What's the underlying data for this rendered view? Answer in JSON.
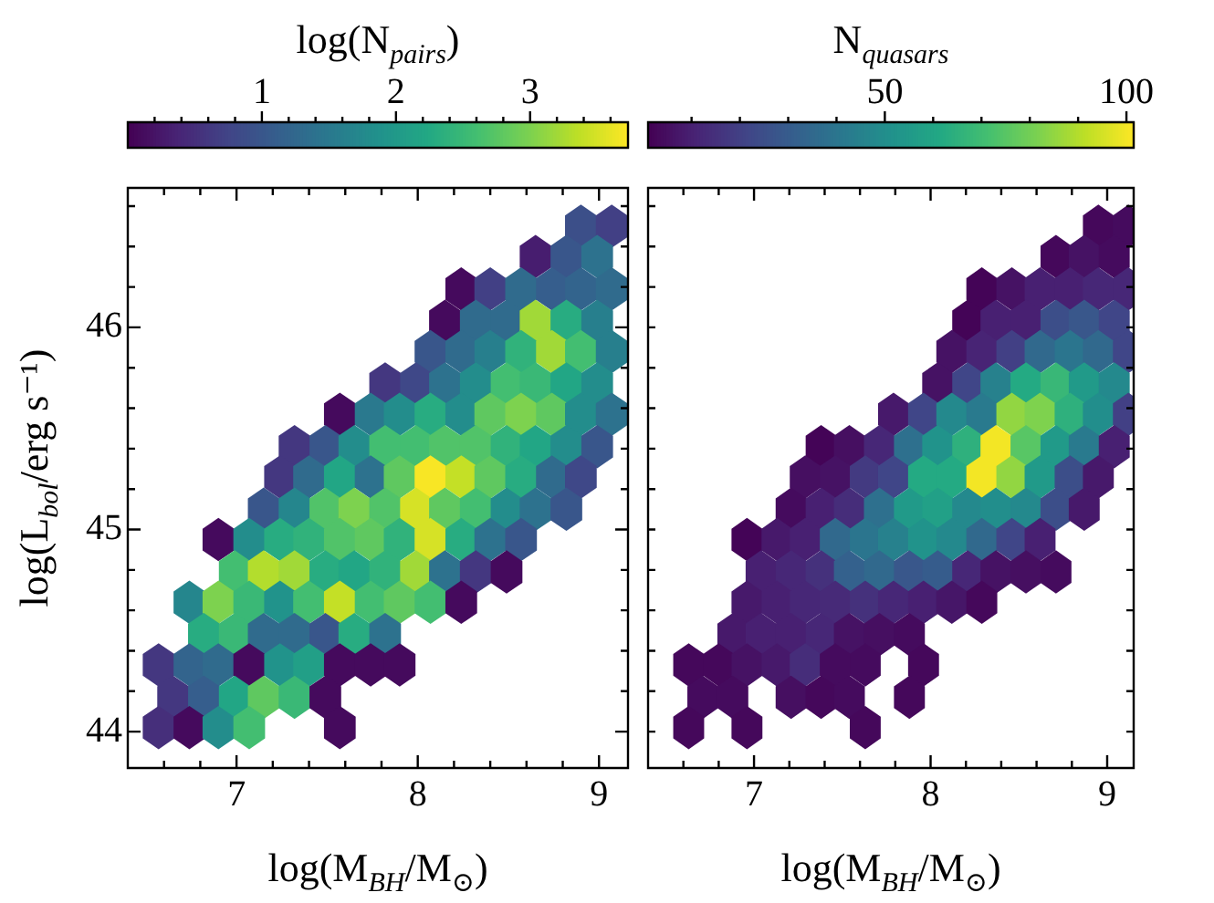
{
  "chart_data": [
    {
      "type": "scatter",
      "clabel": "log(N$_{pairs}$)",
      "xlabel": "log(M$_{BH}$/M$_{⊙}$)",
      "ylabel": "log(L$_{bol}$/erg s⁻¹)",
      "xlim": [
        6.4,
        9.16
      ],
      "ylim": [
        43.82,
        46.69
      ],
      "xticks": [
        {
          "value": 6.6,
          "label": null
        },
        {
          "value": 6.8,
          "label": null
        },
        7,
        {
          "value": 7.2,
          "label": null
        },
        {
          "value": 7.4,
          "label": null
        },
        {
          "value": 7.6,
          "label": null
        },
        {
          "value": 7.8,
          "label": null
        },
        8,
        {
          "value": 8.2,
          "label": null
        },
        {
          "value": 8.4,
          "label": null
        },
        {
          "value": 8.6,
          "label": null
        },
        {
          "value": 8.8,
          "label": null
        },
        9
      ],
      "yticks": [
        44,
        {
          "value": 44.2,
          "label": null
        },
        {
          "value": 44.4,
          "label": null
        },
        {
          "value": 44.6,
          "label": null
        },
        {
          "value": 44.8,
          "label": null
        },
        45,
        {
          "value": 45.2,
          "label": null
        },
        {
          "value": 45.4,
          "label": null
        },
        {
          "value": 45.6,
          "label": null
        },
        {
          "value": 45.8,
          "label": null
        },
        46,
        {
          "value": 46.2,
          "label": null
        },
        {
          "value": 46.4,
          "label": null
        },
        {
          "value": 46.6,
          "label": null
        }
      ],
      "clim": [
        0,
        3.73
      ],
      "cticks": [
        {
          "value": 0.2,
          "label": null
        },
        {
          "value": 0.4,
          "label": null
        },
        {
          "value": 0.6,
          "label": null
        },
        {
          "value": 0.8,
          "label": null
        },
        1,
        {
          "value": 1.2,
          "label": null
        },
        {
          "value": 1.4,
          "label": null
        },
        {
          "value": 1.6,
          "label": null
        },
        {
          "value": 1.8,
          "label": null
        },
        2,
        {
          "value": 2.2,
          "label": null
        },
        {
          "value": 2.4,
          "label": null
        },
        {
          "value": 2.6,
          "label": null
        },
        {
          "value": 2.8,
          "label": null
        },
        3,
        {
          "value": 3.2,
          "label": null
        },
        {
          "value": 3.4,
          "label": null
        },
        {
          "value": 3.6,
          "label": null
        }
      ],
      "x": [
        8.9,
        9.07,
        8.65,
        8.82,
        8.99,
        8.24,
        8.4,
        8.57,
        8.74,
        8.9,
        9.07,
        8.15,
        8.32,
        8.49,
        8.65,
        8.82,
        8.99,
        8.07,
        8.24,
        8.4,
        8.57,
        8.74,
        8.9,
        9.07,
        7.82,
        7.99,
        8.15,
        8.32,
        8.49,
        8.65,
        8.82,
        8.99,
        7.57,
        7.74,
        7.9,
        8.07,
        8.24,
        8.4,
        8.57,
        8.74,
        8.9,
        9.07,
        7.32,
        7.49,
        7.65,
        7.82,
        7.99,
        8.15,
        8.32,
        8.49,
        8.65,
        8.82,
        8.99,
        7.24,
        7.4,
        7.57,
        7.74,
        7.9,
        8.07,
        8.24,
        8.4,
        8.57,
        8.74,
        8.9,
        7.15,
        7.32,
        7.49,
        7.65,
        7.82,
        7.99,
        8.15,
        8.32,
        8.49,
        8.65,
        8.82,
        6.9,
        7.07,
        7.24,
        7.4,
        7.57,
        7.74,
        7.9,
        8.07,
        8.24,
        8.4,
        8.57,
        6.99,
        7.15,
        7.32,
        7.49,
        7.65,
        7.82,
        7.99,
        8.15,
        8.32,
        8.49,
        6.74,
        6.9,
        7.07,
        7.24,
        7.4,
        7.57,
        7.74,
        7.9,
        8.07,
        8.24,
        6.82,
        6.99,
        7.15,
        7.32,
        7.49,
        7.65,
        7.82,
        6.57,
        6.74,
        6.9,
        7.07,
        7.24,
        7.4,
        7.57,
        7.74,
        7.9,
        6.65,
        6.82,
        6.99,
        7.15,
        7.32,
        7.49,
        6.57,
        6.74,
        6.9,
        7.07,
        7.57
      ],
      "values": [
        46.5,
        46.5,
        46.35,
        46.35,
        46.35,
        46.19,
        46.19,
        46.19,
        46.19,
        46.19,
        46.19,
        46.03,
        46.03,
        46.03,
        46.03,
        46.03,
        46.03,
        45.88,
        45.88,
        45.88,
        45.88,
        45.88,
        45.88,
        45.88,
        45.72,
        45.72,
        45.72,
        45.72,
        45.72,
        45.72,
        45.72,
        45.72,
        45.57,
        45.57,
        45.57,
        45.57,
        45.57,
        45.57,
        45.57,
        45.57,
        45.57,
        45.57,
        45.41,
        45.41,
        45.41,
        45.41,
        45.41,
        45.41,
        45.41,
        45.41,
        45.41,
        45.41,
        45.41,
        45.26,
        45.26,
        45.26,
        45.26,
        45.26,
        45.26,
        45.26,
        45.26,
        45.26,
        45.26,
        45.26,
        45.1,
        45.1,
        45.1,
        45.1,
        45.1,
        45.1,
        45.1,
        45.1,
        45.1,
        45.1,
        45.1,
        44.95,
        44.95,
        44.95,
        44.95,
        44.95,
        44.95,
        44.95,
        44.95,
        44.95,
        44.95,
        44.95,
        44.79,
        44.79,
        44.79,
        44.79,
        44.79,
        44.79,
        44.79,
        44.79,
        44.79,
        44.79,
        44.64,
        44.64,
        44.64,
        44.64,
        44.64,
        44.64,
        44.64,
        44.64,
        44.64,
        44.64,
        44.48,
        44.48,
        44.48,
        44.48,
        44.48,
        44.48,
        44.48,
        44.33,
        44.33,
        44.33,
        44.33,
        44.33,
        44.33,
        44.33,
        44.33,
        44.33,
        44.17,
        44.17,
        44.17,
        44.17,
        44.17,
        44.17,
        44.02,
        44.02,
        44.02,
        44.02,
        44.02
      ],
      "cvalues": [
        0.9,
        0.7,
        0.3,
        1.0,
        1.4,
        0.1,
        0.7,
        1.3,
        1.1,
        1.2,
        1.3,
        0.1,
        1.3,
        1.3,
        3.2,
        2.3,
        1.6,
        1.0,
        1.3,
        1.6,
        2.4,
        3.2,
        2.6,
        1.6,
        0.6,
        0.8,
        1.4,
        1.8,
        2.6,
        2.5,
        2.2,
        1.8,
        0.1,
        1.5,
        1.8,
        2.3,
        1.8,
        2.8,
        3.0,
        2.8,
        1.8,
        1.4,
        0.6,
        1.0,
        1.8,
        2.6,
        2.6,
        2.7,
        2.7,
        2.4,
        2.2,
        1.8,
        1.0,
        0.6,
        1.3,
        2.2,
        1.4,
        2.8,
        3.7,
        3.4,
        2.8,
        2.3,
        1.3,
        0.8,
        1.0,
        1.7,
        2.7,
        3.0,
        2.7,
        3.5,
        2.8,
        2.6,
        1.8,
        1.4,
        1.0,
        0.1,
        1.8,
        2.3,
        2.4,
        2.7,
        2.8,
        2.4,
        3.5,
        2.3,
        1.4,
        1.0,
        2.6,
        3.3,
        3.2,
        2.3,
        2.2,
        2.4,
        3.2,
        1.4,
        0.6,
        0.1,
        1.7,
        3.0,
        2.5,
        1.9,
        2.6,
        3.4,
        2.6,
        2.8,
        2.6,
        0.1,
        2.3,
        2.5,
        1.3,
        1.3,
        1.0,
        2.3,
        1.4,
        0.6,
        1.2,
        1.3,
        0.1,
        1.9,
        2.1,
        0.1,
        0.1,
        0.1,
        0.6,
        1.1,
        2.2,
        2.8,
        2.5,
        0.1,
        0.5,
        0.1,
        1.8,
        2.6,
        0.1
      ]
    },
    {
      "type": "scatter",
      "clabel": "N$_{quasars}$",
      "xlabel": "log(M$_{BH}$/M$_{⊙}$)",
      "tick_labels": "x",
      "xlim": [
        6.4,
        9.15
      ],
      "ylim": [
        43.82,
        46.69
      ],
      "xticks": [
        {
          "value": 6.6,
          "label": null
        },
        {
          "value": 6.8,
          "label": null
        },
        7,
        {
          "value": 7.2,
          "label": null
        },
        {
          "value": 7.4,
          "label": null
        },
        {
          "value": 7.6,
          "label": null
        },
        {
          "value": 7.8,
          "label": null
        },
        8,
        {
          "value": 8.2,
          "label": null
        },
        {
          "value": 8.4,
          "label": null
        },
        {
          "value": 8.6,
          "label": null
        },
        {
          "value": 8.8,
          "label": null
        },
        9
      ],
      "yticks": [
        {
          "value": 44,
          "label": null
        },
        {
          "value": 44.2,
          "label": null
        },
        {
          "value": 44.4,
          "label": null
        },
        {
          "value": 44.6,
          "label": null
        },
        {
          "value": 44.8,
          "label": null
        },
        {
          "value": 45,
          "label": null
        },
        {
          "value": 45.2,
          "label": null
        },
        {
          "value": 45.4,
          "label": null
        },
        {
          "value": 45.6,
          "label": null
        },
        {
          "value": 45.8,
          "label": null
        },
        {
          "value": 46,
          "label": null
        },
        {
          "value": 46.2,
          "label": null
        },
        {
          "value": 46.4,
          "label": null
        },
        {
          "value": 46.6,
          "label": null
        }
      ],
      "clim": [
        1,
        101.5
      ],
      "cticks": [
        {
          "value": 10,
          "label": null
        },
        {
          "value": 20,
          "label": null
        },
        {
          "value": 30,
          "label": null
        },
        {
          "value": 40,
          "label": null
        },
        50,
        {
          "value": 60,
          "label": null
        },
        {
          "value": 70,
          "label": null
        },
        {
          "value": 80,
          "label": null
        },
        {
          "value": 90,
          "label": null
        },
        100
      ],
      "x": [
        8.95,
        9.12,
        8.71,
        8.87,
        9.04,
        8.29,
        8.46,
        8.62,
        8.79,
        8.95,
        9.12,
        8.21,
        8.37,
        8.54,
        8.71,
        8.87,
        9.04,
        8.12,
        8.29,
        8.46,
        8.62,
        8.79,
        8.95,
        9.12,
        8.04,
        8.21,
        8.37,
        8.54,
        8.71,
        8.87,
        9.04,
        7.79,
        7.96,
        8.12,
        8.29,
        8.46,
        8.62,
        8.79,
        8.95,
        9.12,
        7.38,
        7.54,
        7.71,
        7.88,
        8.04,
        8.21,
        8.37,
        8.54,
        8.71,
        8.87,
        9.04,
        7.29,
        7.46,
        7.63,
        7.79,
        7.96,
        8.12,
        8.29,
        8.46,
        8.62,
        8.79,
        8.95,
        7.21,
        7.38,
        7.54,
        7.71,
        7.88,
        8.04,
        8.21,
        8.37,
        8.54,
        8.71,
        8.87,
        6.96,
        7.13,
        7.29,
        7.46,
        7.63,
        7.79,
        7.96,
        8.12,
        8.29,
        8.46,
        8.62,
        7.04,
        7.21,
        7.38,
        7.54,
        7.71,
        7.88,
        8.04,
        8.21,
        8.37,
        8.54,
        8.71,
        6.96,
        7.13,
        7.29,
        7.46,
        7.63,
        7.79,
        7.96,
        8.12,
        8.29,
        6.88,
        7.04,
        7.21,
        7.38,
        7.54,
        7.71,
        7.88,
        6.63,
        6.8,
        6.96,
        7.13,
        7.29,
        7.46,
        7.63,
        7.96,
        6.71,
        6.88,
        7.21,
        7.38,
        7.54,
        7.88,
        6.63,
        6.96,
        7.63
      ],
      "values": [
        46.5,
        46.5,
        46.35,
        46.35,
        46.35,
        46.19,
        46.19,
        46.19,
        46.19,
        46.19,
        46.19,
        46.03,
        46.03,
        46.03,
        46.03,
        46.03,
        46.03,
        45.88,
        45.88,
        45.88,
        45.88,
        45.88,
        45.88,
        45.88,
        45.72,
        45.72,
        45.72,
        45.72,
        45.72,
        45.72,
        45.72,
        45.57,
        45.57,
        45.57,
        45.57,
        45.57,
        45.57,
        45.57,
        45.57,
        45.57,
        45.41,
        45.41,
        45.41,
        45.41,
        45.41,
        45.41,
        45.41,
        45.41,
        45.41,
        45.41,
        45.41,
        45.26,
        45.26,
        45.26,
        45.26,
        45.26,
        45.26,
        45.26,
        45.26,
        45.26,
        45.26,
        45.26,
        45.1,
        45.1,
        45.1,
        45.1,
        45.1,
        45.1,
        45.1,
        45.1,
        45.1,
        45.1,
        45.1,
        44.95,
        44.95,
        44.95,
        44.95,
        44.95,
        44.95,
        44.95,
        44.95,
        44.95,
        44.95,
        44.95,
        44.79,
        44.79,
        44.79,
        44.79,
        44.79,
        44.79,
        44.79,
        44.79,
        44.79,
        44.79,
        44.79,
        44.64,
        44.64,
        44.64,
        44.64,
        44.64,
        44.64,
        44.64,
        44.64,
        44.64,
        44.48,
        44.48,
        44.48,
        44.48,
        44.48,
        44.48,
        44.48,
        44.33,
        44.33,
        44.33,
        44.33,
        44.33,
        44.33,
        44.33,
        44.33,
        44.17,
        44.17,
        44.17,
        44.17,
        44.17,
        44.17,
        44.02,
        44.02,
        44.02
      ],
      "cvalues": [
        3,
        4,
        3,
        6,
        4,
        2,
        6,
        10,
        10,
        12,
        12,
        2,
        10,
        10,
        25,
        28,
        22,
        6,
        11,
        20,
        35,
        40,
        35,
        22,
        6,
        22,
        45,
        62,
        68,
        55,
        48,
        8,
        22,
        48,
        42,
        85,
        82,
        65,
        50,
        20,
        2,
        5,
        12,
        38,
        52,
        65,
        100,
        75,
        55,
        42,
        10,
        5,
        6,
        18,
        22,
        62,
        62,
        100,
        85,
        55,
        25,
        8,
        4,
        10,
        14,
        38,
        55,
        58,
        48,
        50,
        48,
        25,
        8,
        2,
        8,
        10,
        35,
        40,
        45,
        52,
        48,
        35,
        22,
        10,
        10,
        12,
        15,
        32,
        35,
        28,
        30,
        12,
        6,
        5,
        4,
        8,
        10,
        12,
        13,
        15,
        12,
        10,
        7,
        3,
        8,
        10,
        10,
        12,
        6,
        5,
        4,
        3,
        3,
        6,
        8,
        14,
        4,
        4,
        3,
        4,
        4,
        5,
        3,
        4,
        3,
        3,
        3,
        3
      ]
    }
  ]
}
